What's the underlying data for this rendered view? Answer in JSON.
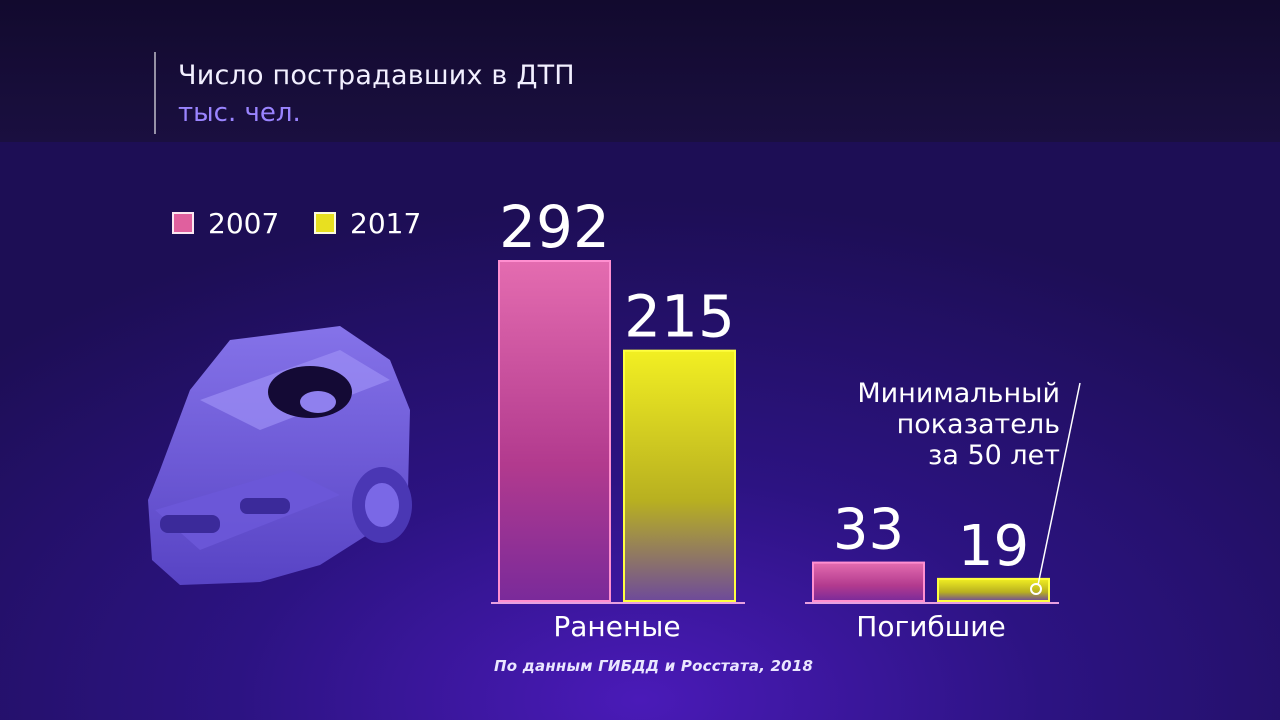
{
  "header": {
    "title": "Число пострадавших в ДТП",
    "subtitle": "тыс. чел."
  },
  "legend": [
    {
      "label": "2007",
      "color": "#e0609e"
    },
    {
      "label": "2017",
      "color": "#e8e020"
    }
  ],
  "annotation": {
    "line1": "Минимальный",
    "line2": "показатель",
    "line3": "за 50 лет"
  },
  "footnote": "По данным ГИБДД и Росстата, 2018",
  "chart_data": {
    "type": "bar",
    "title": "Число пострадавших в ДТП",
    "ylabel": "тыс. чел.",
    "categories": [
      "Раненые",
      "Погибшие"
    ],
    "series": [
      {
        "name": "2007",
        "values": [
          292,
          33
        ]
      },
      {
        "name": "2017",
        "values": [
          215,
          19
        ]
      }
    ],
    "ylim": [
      0,
      292
    ],
    "grid": false,
    "legend_position": "top-left"
  },
  "illustration": {
    "icon": "crashed-car-icon"
  }
}
